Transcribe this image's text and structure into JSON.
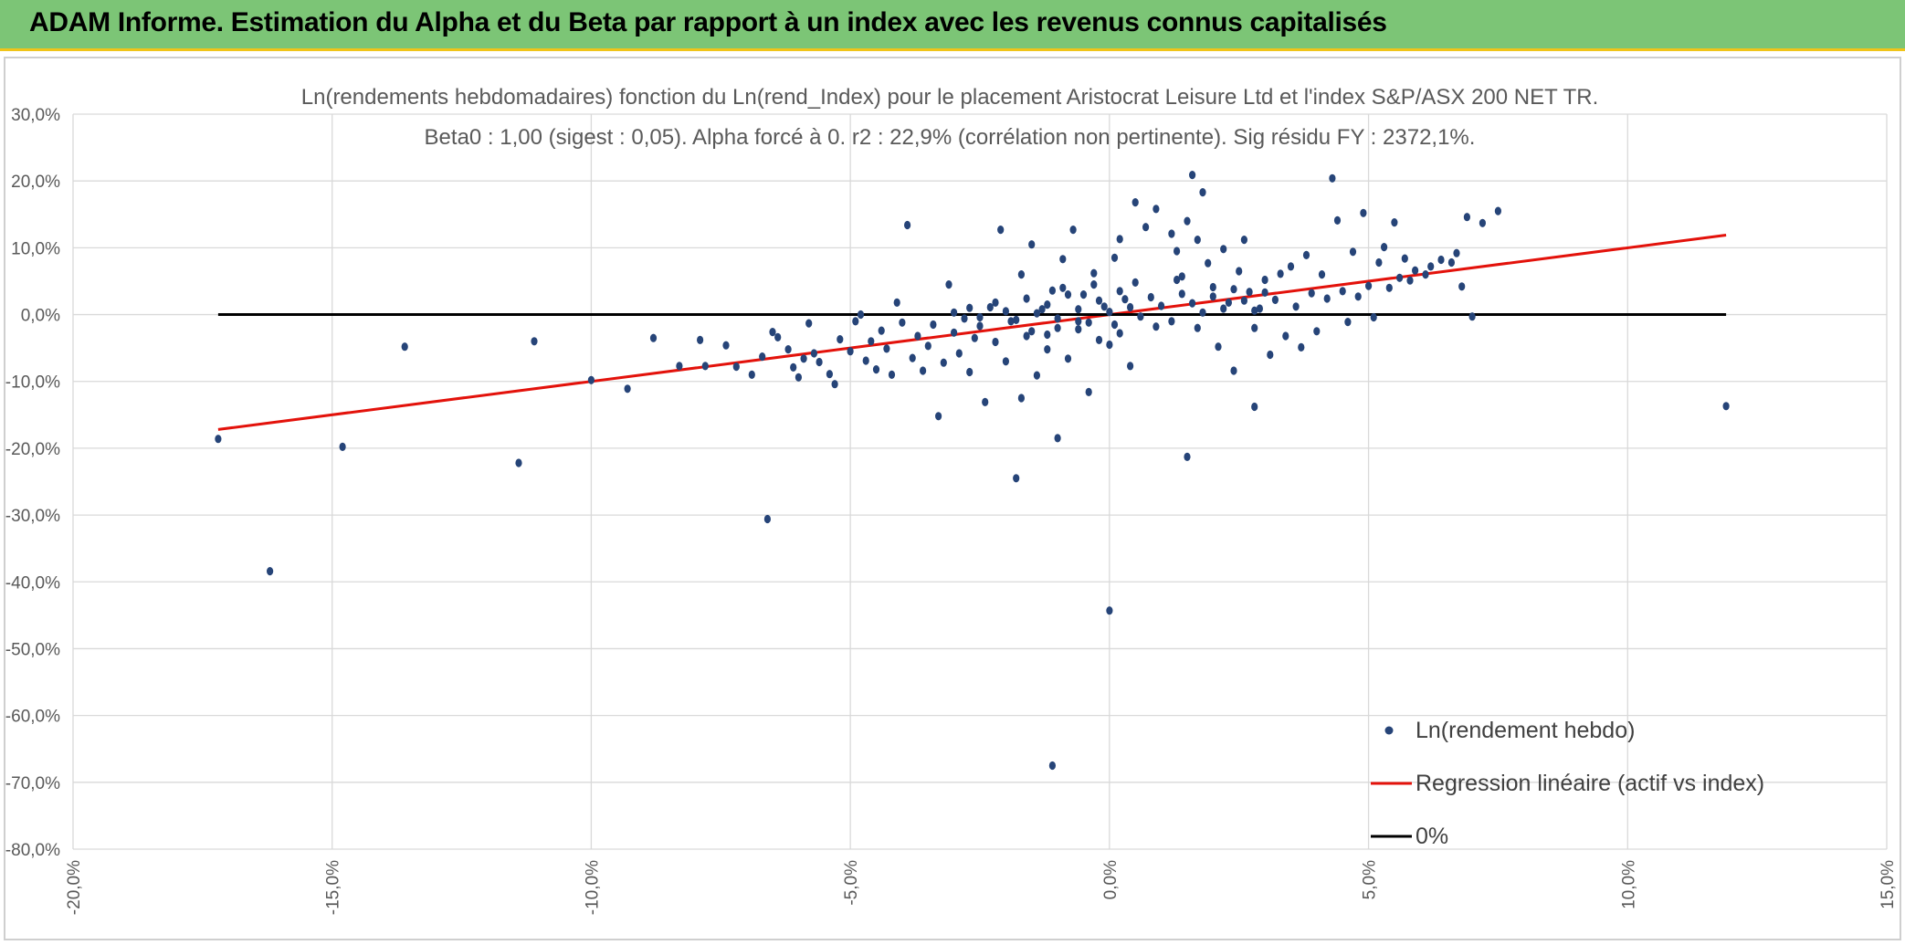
{
  "header": {
    "title": "ADAM Informe. Estimation du Alpha et du Beta par rapport à un index avec les revenus connus capitalisés",
    "background_color": "#7cc576"
  },
  "chart_data": {
    "type": "scatter",
    "title": "Ln(rendements hebdomadaires) fonction du Ln(rend_Index) pour le placement Aristocrat Leisure Ltd et l'index S&P/ASX 200 NET TR.",
    "subtitle": "Beta0 : 1,00 (sigest : 0,05). Alpha forcé à 0. r2 : 22,9% (corrélation non pertinente). Sig résidu FY : 2372,1%.",
    "xlabel": "",
    "ylabel": "",
    "xlim": [
      -0.2,
      0.15
    ],
    "ylim": [
      -0.8,
      0.3
    ],
    "x_ticks": [
      -0.2,
      -0.15,
      -0.1,
      -0.05,
      0.0,
      0.05,
      0.1,
      0.15
    ],
    "x_tick_labels": [
      "-20,0%",
      "-15,0%",
      "-10,0%",
      "-5,0%",
      "0,0%",
      "5,0%",
      "10,0%",
      "15,0%"
    ],
    "y_ticks": [
      0.3,
      0.2,
      0.1,
      0.0,
      -0.1,
      -0.2,
      -0.3,
      -0.4,
      -0.5,
      -0.6,
      -0.7,
      -0.8
    ],
    "y_tick_labels": [
      "30,0%",
      "20,0%",
      "10,0%",
      "0,0%",
      "-10,0%",
      "-20,0%",
      "-30,0%",
      "-40,0%",
      "-50,0%",
      "-60,0%",
      "-70,0%",
      "-80,0%"
    ],
    "grid": true,
    "legend_position": "bottom-right",
    "series": [
      {
        "name": "Ln(rendement hebdo)",
        "kind": "scatter",
        "color": "#264478",
        "points": [
          [
            -0.172,
            -0.186
          ],
          [
            -0.162,
            -0.384
          ],
          [
            -0.148,
            -0.198
          ],
          [
            -0.136,
            -0.048
          ],
          [
            -0.114,
            -0.222
          ],
          [
            -0.111,
            -0.04
          ],
          [
            -0.1,
            -0.098
          ],
          [
            -0.093,
            -0.111
          ],
          [
            -0.088,
            -0.035
          ],
          [
            -0.083,
            -0.077
          ],
          [
            -0.079,
            -0.038
          ],
          [
            -0.078,
            -0.077
          ],
          [
            -0.074,
            -0.046
          ],
          [
            -0.072,
            -0.078
          ],
          [
            -0.069,
            -0.09
          ],
          [
            -0.067,
            -0.063
          ],
          [
            -0.066,
            -0.306
          ],
          [
            -0.065,
            -0.026
          ],
          [
            -0.064,
            -0.034
          ],
          [
            -0.062,
            -0.052
          ],
          [
            -0.061,
            -0.079
          ],
          [
            -0.06,
            -0.094
          ],
          [
            -0.059,
            -0.066
          ],
          [
            -0.058,
            -0.013
          ],
          [
            -0.057,
            -0.058
          ],
          [
            -0.056,
            -0.071
          ],
          [
            -0.054,
            -0.089
          ],
          [
            -0.053,
            -0.104
          ],
          [
            -0.052,
            -0.037
          ],
          [
            -0.05,
            -0.055
          ],
          [
            -0.049,
            -0.01
          ],
          [
            -0.048,
            0.0
          ],
          [
            -0.047,
            -0.069
          ],
          [
            -0.046,
            -0.04
          ],
          [
            -0.045,
            -0.082
          ],
          [
            -0.044,
            -0.024
          ],
          [
            -0.043,
            -0.051
          ],
          [
            -0.042,
            -0.09
          ],
          [
            -0.041,
            0.018
          ],
          [
            -0.04,
            -0.012
          ],
          [
            -0.039,
            0.134
          ],
          [
            -0.038,
            -0.065
          ],
          [
            -0.037,
            -0.032
          ],
          [
            -0.036,
            -0.084
          ],
          [
            -0.035,
            -0.047
          ],
          [
            -0.034,
            -0.015
          ],
          [
            -0.033,
            -0.152
          ],
          [
            -0.032,
            -0.072
          ],
          [
            -0.031,
            0.045
          ],
          [
            -0.03,
            -0.027
          ],
          [
            -0.029,
            -0.058
          ],
          [
            -0.028,
            -0.006
          ],
          [
            -0.027,
            -0.086
          ],
          [
            -0.026,
            -0.035
          ],
          [
            -0.025,
            -0.017
          ],
          [
            -0.024,
            -0.131
          ],
          [
            -0.023,
            0.011
          ],
          [
            -0.022,
            -0.041
          ],
          [
            -0.021,
            0.127
          ],
          [
            -0.02,
            -0.07
          ],
          [
            -0.019,
            -0.01
          ],
          [
            -0.018,
            -0.245
          ],
          [
            -0.017,
            -0.125
          ],
          [
            -0.017,
            0.06
          ],
          [
            -0.016,
            -0.032
          ],
          [
            -0.015,
            0.105
          ],
          [
            -0.014,
            -0.091
          ],
          [
            -0.013,
            0.008
          ],
          [
            -0.012,
            -0.052
          ],
          [
            -0.011,
            0.036
          ],
          [
            -0.01,
            -0.02
          ],
          [
            -0.009,
            0.083
          ],
          [
            -0.008,
            -0.066
          ],
          [
            -0.007,
            0.127
          ],
          [
            -0.006,
            -0.01
          ],
          [
            -0.005,
            0.03
          ],
          [
            -0.004,
            -0.116
          ],
          [
            -0.003,
            0.062
          ],
          [
            -0.002,
            -0.038
          ],
          [
            -0.001,
            0.012
          ],
          [
            0.0,
            -0.045
          ],
          [
            0.001,
            0.085
          ],
          [
            0.002,
            -0.028
          ],
          [
            0.003,
            0.023
          ],
          [
            0.004,
            -0.077
          ],
          [
            -0.011,
            -0.675
          ],
          [
            -0.01,
            -0.185
          ],
          [
            0.0,
            -0.443
          ],
          [
            0.015,
            -0.213
          ],
          [
            0.028,
            -0.138
          ],
          [
            0.002,
            0.113
          ],
          [
            0.005,
            0.168
          ],
          [
            0.007,
            0.131
          ],
          [
            0.009,
            0.158
          ],
          [
            0.012,
            0.121
          ],
          [
            0.013,
            0.095
          ],
          [
            0.014,
            0.057
          ],
          [
            0.015,
            0.14
          ],
          [
            0.016,
            0.209
          ],
          [
            0.017,
            0.112
          ],
          [
            0.018,
            0.183
          ],
          [
            0.019,
            0.077
          ],
          [
            0.02,
            0.041
          ],
          [
            0.021,
            -0.048
          ],
          [
            0.022,
            0.098
          ],
          [
            0.023,
            0.018
          ],
          [
            0.024,
            -0.084
          ],
          [
            0.025,
            0.065
          ],
          [
            0.026,
            0.112
          ],
          [
            0.027,
            0.034
          ],
          [
            0.028,
            -0.02
          ],
          [
            0.029,
            0.009
          ],
          [
            0.03,
            0.052
          ],
          [
            0.031,
            -0.06
          ],
          [
            0.032,
            0.022
          ],
          [
            0.033,
            0.061
          ],
          [
            0.034,
            -0.032
          ],
          [
            0.035,
            0.072
          ],
          [
            0.036,
            0.012
          ],
          [
            0.037,
            -0.049
          ],
          [
            0.038,
            0.089
          ],
          [
            0.039,
            0.032
          ],
          [
            0.04,
            -0.025
          ],
          [
            0.041,
            0.06
          ],
          [
            0.042,
            0.024
          ],
          [
            0.043,
            0.204
          ],
          [
            0.044,
            0.141
          ],
          [
            0.045,
            0.035
          ],
          [
            0.046,
            -0.011
          ],
          [
            0.047,
            0.094
          ],
          [
            0.048,
            0.027
          ],
          [
            0.049,
            0.152
          ],
          [
            0.05,
            0.043
          ],
          [
            0.051,
            -0.004
          ],
          [
            0.052,
            0.078
          ],
          [
            0.053,
            0.101
          ],
          [
            0.054,
            0.04
          ],
          [
            0.055,
            0.138
          ],
          [
            0.056,
            0.055
          ],
          [
            0.057,
            0.084
          ],
          [
            0.058,
            0.051
          ],
          [
            0.059,
            0.066
          ],
          [
            0.061,
            0.06
          ],
          [
            0.062,
            0.072
          ],
          [
            0.064,
            0.082
          ],
          [
            0.066,
            0.078
          ],
          [
            0.067,
            0.092
          ],
          [
            0.068,
            0.042
          ],
          [
            0.069,
            0.146
          ],
          [
            0.07,
            -0.003
          ],
          [
            0.072,
            0.137
          ],
          [
            0.075,
            0.155
          ],
          [
            0.119,
            -0.137
          ],
          [
            -0.03,
            0.003
          ],
          [
            -0.027,
            0.01
          ],
          [
            -0.025,
            -0.004
          ],
          [
            -0.022,
            0.018
          ],
          [
            -0.02,
            0.005
          ],
          [
            -0.018,
            -0.008
          ],
          [
            -0.016,
            0.024
          ],
          [
            -0.014,
            0.002
          ],
          [
            -0.012,
            0.015
          ],
          [
            -0.01,
            -0.006
          ],
          [
            -0.008,
            0.03
          ],
          [
            -0.006,
            0.008
          ],
          [
            -0.004,
            -0.012
          ],
          [
            -0.002,
            0.021
          ],
          [
            0.0,
            0.004
          ],
          [
            0.002,
            0.035
          ],
          [
            0.004,
            0.011
          ],
          [
            0.006,
            -0.003
          ],
          [
            0.008,
            0.026
          ],
          [
            0.01,
            0.013
          ],
          [
            0.012,
            -0.01
          ],
          [
            0.014,
            0.031
          ],
          [
            0.016,
            0.017
          ],
          [
            0.018,
            0.003
          ],
          [
            0.02,
            0.027
          ],
          [
            0.022,
            0.009
          ],
          [
            0.024,
            0.038
          ],
          [
            0.026,
            0.021
          ],
          [
            0.028,
            0.006
          ],
          [
            0.03,
            0.033
          ],
          [
            -0.015,
            -0.025
          ],
          [
            -0.012,
            -0.03
          ],
          [
            -0.009,
            0.04
          ],
          [
            -0.006,
            -0.022
          ],
          [
            -0.003,
            0.045
          ],
          [
            0.001,
            -0.015
          ],
          [
            0.005,
            0.048
          ],
          [
            0.009,
            -0.018
          ],
          [
            0.013,
            0.052
          ],
          [
            0.017,
            -0.02
          ]
        ]
      },
      {
        "name": "Regression linéaire (actif vs index)",
        "kind": "line",
        "color": "#e3120b",
        "points": [
          [
            -0.172,
            -0.172
          ],
          [
            0.119,
            0.119
          ]
        ]
      },
      {
        "name": "0%",
        "kind": "line",
        "color": "#000000",
        "points": [
          [
            -0.172,
            0.0
          ],
          [
            0.119,
            0.0
          ]
        ]
      }
    ]
  }
}
